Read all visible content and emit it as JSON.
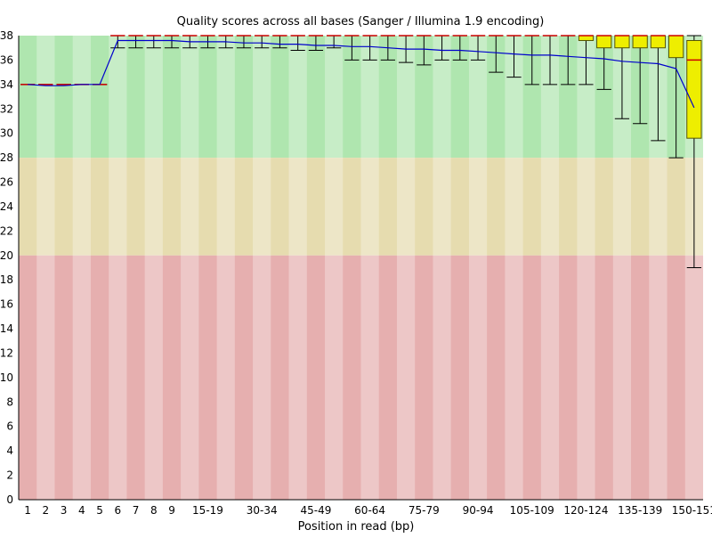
{
  "chart_data": {
    "type": "box",
    "title": "Quality scores across all bases (Sanger / Illumina 1.9 encoding)",
    "xlabel": "Position in read (bp)",
    "ylabel": "",
    "ylim": [
      0,
      38
    ],
    "yticks": [
      0,
      2,
      4,
      6,
      8,
      10,
      12,
      14,
      16,
      18,
      20,
      22,
      24,
      26,
      28,
      30,
      32,
      34,
      36,
      38
    ],
    "grid": false,
    "zones": [
      {
        "from": 28,
        "to": 38,
        "color": "#afe6af"
      },
      {
        "from": 20,
        "to": 28,
        "color": "#e6dcaf"
      },
      {
        "from": 0,
        "to": 20,
        "color": "#e6afaf"
      }
    ],
    "colors": {
      "mean_line": "#0000cc",
      "median": "#cc0000",
      "box_fill": "#eeee00",
      "box_stroke": "#555500",
      "whisker": "#000000",
      "stripe_highlight": "#ffffff"
    },
    "categories": [
      "1",
      "2",
      "3",
      "4",
      "5",
      "6",
      "7",
      "8",
      "9",
      "10-14",
      "15-19",
      "20-24",
      "25-29",
      "30-34",
      "35-39",
      "40-44",
      "45-49",
      "50-54",
      "55-59",
      "60-64",
      "65-69",
      "70-74",
      "75-79",
      "80-84",
      "85-89",
      "90-94",
      "95-99",
      "100-104",
      "105-109",
      "110-114",
      "115-119",
      "120-124",
      "125-129",
      "130-134",
      "135-139",
      "140-144",
      "145-149",
      "150-151"
    ],
    "category_labels": [
      "1",
      "2",
      "3",
      "4",
      "5",
      "6",
      "7",
      "8",
      "9",
      "",
      "15-19",
      "",
      "",
      "30-34",
      "",
      "",
      "45-49",
      "",
      "",
      "60-64",
      "",
      "",
      "75-79",
      "",
      "",
      "90-94",
      "",
      "",
      "105-109",
      "",
      "",
      "120-124",
      "",
      "",
      "135-139",
      "",
      "",
      "150-151"
    ],
    "series": [
      {
        "name": "mean",
        "values": [
          34.0,
          33.9,
          33.9,
          34.0,
          34.0,
          37.6,
          37.6,
          37.6,
          37.6,
          37.5,
          37.5,
          37.5,
          37.4,
          37.4,
          37.3,
          37.3,
          37.2,
          37.2,
          37.1,
          37.1,
          37.0,
          36.9,
          36.9,
          36.8,
          36.8,
          36.7,
          36.6,
          36.5,
          36.4,
          36.4,
          36.3,
          36.2,
          36.1,
          35.9,
          35.8,
          35.7,
          35.3,
          32.1
        ]
      },
      {
        "name": "median",
        "values": [
          34,
          34,
          34,
          34,
          34,
          38,
          38,
          38,
          38,
          38,
          38,
          38,
          38,
          38,
          38,
          38,
          38,
          38,
          38,
          38,
          38,
          38,
          38,
          38,
          38,
          38,
          38,
          38,
          38,
          38,
          38,
          38,
          38,
          38,
          38,
          38,
          38,
          36
        ]
      },
      {
        "name": "q1",
        "values": [
          34,
          34,
          34,
          34,
          34,
          38,
          38,
          38,
          38,
          38,
          38,
          38,
          38,
          38,
          38,
          38,
          38,
          38,
          38,
          38,
          38,
          38,
          38,
          38,
          38,
          38,
          38,
          38,
          38,
          38,
          38,
          37.6,
          37,
          37,
          37,
          37,
          36.2,
          29.6
        ]
      },
      {
        "name": "q3",
        "values": [
          34,
          34,
          34,
          34,
          34,
          38,
          38,
          38,
          38,
          38,
          38,
          38,
          38,
          38,
          38,
          38,
          38,
          38,
          38,
          38,
          38,
          38,
          38,
          38,
          38,
          38,
          38,
          38,
          38,
          38,
          38,
          38,
          38,
          38,
          38,
          38,
          38,
          37.6
        ]
      },
      {
        "name": "p10",
        "values": [
          34,
          34,
          34,
          34,
          34,
          37,
          37,
          37,
          37,
          37,
          37,
          37,
          37,
          37,
          37,
          36.8,
          36.8,
          37,
          36,
          36,
          36,
          35.8,
          35.6,
          36,
          36,
          36,
          35,
          34.6,
          34,
          34,
          34,
          34,
          33.6,
          31.2,
          30.8,
          29.4,
          28,
          19
        ]
      },
      {
        "name": "p90",
        "values": [
          34,
          34,
          34,
          34,
          34,
          38,
          38,
          38,
          38,
          38,
          38,
          38,
          38,
          38,
          38,
          38,
          38,
          38,
          38,
          38,
          38,
          38,
          38,
          38,
          38,
          38,
          38,
          38,
          38,
          38,
          38,
          38,
          38,
          38,
          38,
          38,
          38,
          38
        ]
      }
    ]
  }
}
